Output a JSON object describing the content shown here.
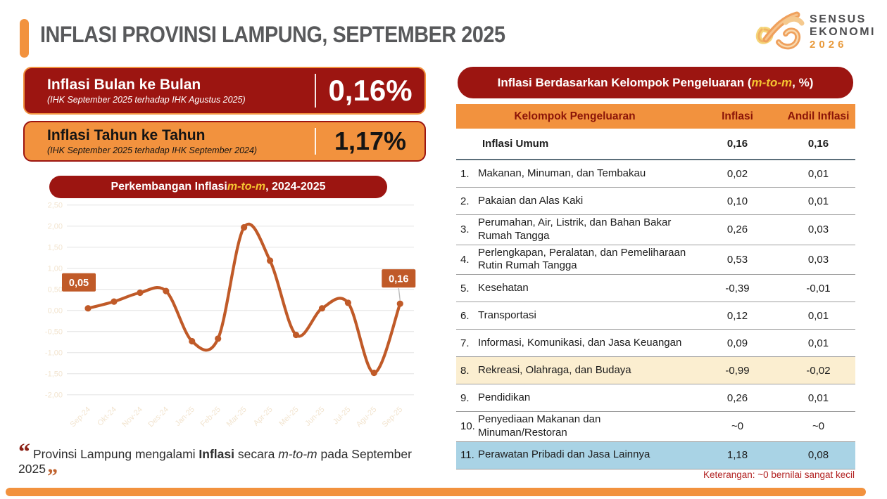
{
  "header": {
    "title": "INFLASI PROVINSI LAMPUNG, SEPTEMBER 2025",
    "logo": {
      "line1": "SENSUS",
      "line2": "EKONOMI",
      "year": "2026"
    }
  },
  "kpi": [
    {
      "title": "Inflasi Bulan ke Bulan",
      "subtitle": "(IHK September 2025 terhadap IHK Agustus 2025)",
      "value": "0,16%"
    },
    {
      "title": "Inflasi Tahun ke Tahun",
      "subtitle": "(IHK September 2025 terhadap IHK September 2024)",
      "value": "1,17%"
    }
  ],
  "chart_title": {
    "prefix": "Perkembangan Inflasi ",
    "emph": "m-to-m",
    "suffix": ", 2024-2025"
  },
  "table_title": {
    "prefix": "Inflasi Berdasarkan Kelompok Pengeluaran (",
    "emph": "m-to-m",
    "suffix": ", %)"
  },
  "chart_data": [
    {
      "type": "line",
      "title": "Perkembangan Inflasi m-to-m, 2024-2025",
      "categories": [
        "Sep-24",
        "Okt-24",
        "Nov-24",
        "Des-24",
        "Jan-25",
        "Feb-25",
        "Mar-25",
        "Apr-25",
        "Mei-25",
        "Jun-25",
        "Jul-25",
        "Agu-25",
        "Sep-25"
      ],
      "values": [
        0.05,
        0.21,
        0.42,
        0.46,
        -0.73,
        -0.67,
        1.97,
        1.18,
        -0.58,
        0.05,
        0.18,
        -1.48,
        0.16
      ],
      "point_labels": {
        "first": "0,05",
        "last": "0,16"
      },
      "y_ticks": [
        "2,50",
        "2,00",
        "1,50",
        "1,00",
        "0,50",
        "0,00",
        "-0,50",
        "-1,00",
        "-1,50",
        "-2,00"
      ],
      "ylim": [
        -2.0,
        2.5
      ],
      "grid": true,
      "legend": "none",
      "line_color": "#C05A28"
    },
    {
      "type": "table",
      "title": "Inflasi Berdasarkan Kelompok Pengeluaran (m-to-m, %)",
      "columns": [
        "Kelompok Pengeluaran",
        "Inflasi",
        "Andil Inflasi"
      ],
      "summary": {
        "name": "Inflasi Umum",
        "inflasi": "0,16",
        "andil": "0,16"
      },
      "rows": [
        {
          "no": "1.",
          "name": "Makanan, Minuman, dan Tembakau",
          "inflasi": "0,02",
          "andil": "0,01",
          "highlight": ""
        },
        {
          "no": "2.",
          "name": "Pakaian dan Alas Kaki",
          "inflasi": "0,10",
          "andil": "0,01",
          "highlight": ""
        },
        {
          "no": "3.",
          "name": "Perumahan, Air, Listrik, dan Bahan Bakar Rumah Tangga",
          "inflasi": "0,26",
          "andil": "0,03",
          "highlight": ""
        },
        {
          "no": "4.",
          "name": "Perlengkapan, Peralatan, dan Pemeliharaan Rutin Rumah Tangga",
          "inflasi": "0,53",
          "andil": "0,03",
          "highlight": ""
        },
        {
          "no": "5.",
          "name": "Kesehatan",
          "inflasi": "-0,39",
          "andil": "-0,01",
          "highlight": ""
        },
        {
          "no": "6.",
          "name": "Transportasi",
          "inflasi": "0,12",
          "andil": "0,01",
          "highlight": ""
        },
        {
          "no": "7.",
          "name": "Informasi, Komunikasi, dan Jasa Keuangan",
          "inflasi": "0,09",
          "andil": "0,01",
          "highlight": ""
        },
        {
          "no": "8.",
          "name": "Rekreasi, Olahraga, dan Budaya",
          "inflasi": "-0,99",
          "andil": "-0,02",
          "highlight": "cream"
        },
        {
          "no": "9.",
          "name": "Pendidikan",
          "inflasi": "0,26",
          "andil": "0,01",
          "highlight": ""
        },
        {
          "no": "10.",
          "name": "Penyediaan Makanan dan Minuman/Restoran",
          "inflasi": "~0",
          "andil": "~0",
          "highlight": ""
        },
        {
          "no": "11.",
          "name": "Perawatan Pribadi dan Jasa Lainnya",
          "inflasi": "1,18",
          "andil": "0,08",
          "highlight": "blue"
        }
      ]
    }
  ],
  "footer": {
    "quote_open": "“",
    "q1": "Provinsi Lampung mengalami ",
    "q_bold": "Inflasi",
    "q2": " secara ",
    "q_italic": "m-to-m",
    "q3": " pada September 2025",
    "quote_close": "”",
    "note": "Keterangan: ~0 bernilai sangat kecil"
  },
  "colors": {
    "maroon": "#9C1511",
    "orange": "#F2923E",
    "rust_line": "#C05A28",
    "cream_highlight": "#FBEED0",
    "blue_highlight": "#A9D3E5",
    "title_gray": "#58595B",
    "note_red": "#B22222"
  }
}
